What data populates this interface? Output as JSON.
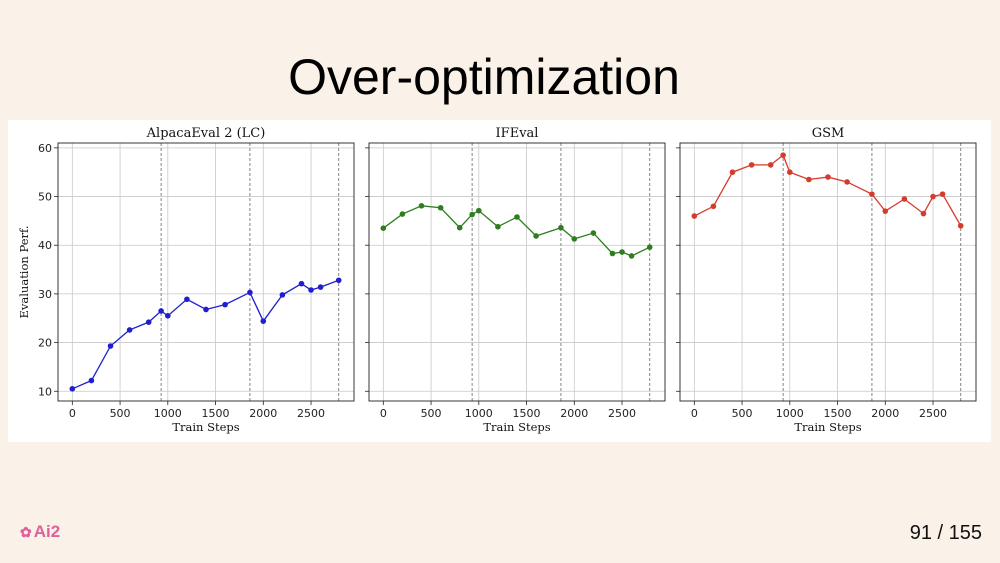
{
  "slide": {
    "title": "Over-optimization",
    "logo_text": "Ai2",
    "page_number": "91 / 155"
  },
  "chart_data": [
    {
      "type": "line",
      "title": "AlpacaEval 2 (LC)",
      "xlabel": "Train Steps",
      "ylabel": "Evaluation Perf.",
      "color": "#1f1fcf",
      "x": [
        0,
        200,
        400,
        600,
        800,
        930,
        1000,
        1200,
        1400,
        1600,
        1860,
        2000,
        2200,
        2400,
        2500,
        2600,
        2790
      ],
      "values": [
        10.5,
        12.2,
        19.3,
        22.6,
        24.2,
        26.5,
        25.5,
        28.9,
        26.8,
        27.8,
        30.3,
        24.4,
        29.8,
        32.1,
        30.8,
        31.4,
        32.8
      ],
      "xlim": [
        -150,
        2950
      ],
      "ylim": [
        8,
        61
      ],
      "xticks": [
        0,
        500,
        1000,
        1500,
        2000,
        2500
      ],
      "yticks": [
        10,
        20,
        30,
        40,
        50,
        60
      ],
      "vlines": [
        930,
        1860,
        2790
      ],
      "grid": true
    },
    {
      "type": "line",
      "title": "IFEval",
      "xlabel": "Train Steps",
      "ylabel": "",
      "color": "#2e7d1f",
      "x": [
        0,
        200,
        400,
        600,
        800,
        930,
        1000,
        1200,
        1400,
        1600,
        1860,
        2000,
        2200,
        2400,
        2500,
        2600,
        2790
      ],
      "values": [
        43.5,
        46.4,
        48.1,
        47.7,
        43.6,
        46.3,
        47.1,
        43.8,
        45.8,
        41.9,
        43.6,
        41.3,
        42.5,
        38.3,
        38.6,
        37.8,
        39.6
      ],
      "xlim": [
        -150,
        2950
      ],
      "ylim": [
        8,
        61
      ],
      "xticks": [
        0,
        500,
        1000,
        1500,
        2000,
        2500
      ],
      "yticks": [
        10,
        20,
        30,
        40,
        50,
        60
      ],
      "vlines": [
        930,
        1860,
        2790
      ],
      "grid": true
    },
    {
      "type": "line",
      "title": "GSM",
      "xlabel": "Train Steps",
      "ylabel": "",
      "color": "#d63a2a",
      "x": [
        0,
        200,
        400,
        600,
        800,
        930,
        1000,
        1200,
        1400,
        1600,
        1860,
        2000,
        2200,
        2400,
        2500,
        2600,
        2790
      ],
      "values": [
        46.0,
        48.0,
        55.0,
        56.5,
        56.5,
        58.5,
        55.0,
        53.5,
        54.0,
        53.0,
        50.5,
        47.0,
        49.5,
        46.5,
        50.0,
        50.5,
        44.0
      ],
      "xlim": [
        -150,
        2950
      ],
      "ylim": [
        8,
        61
      ],
      "xticks": [
        0,
        500,
        1000,
        1500,
        2000,
        2500
      ],
      "yticks": [
        10,
        20,
        30,
        40,
        50,
        60
      ],
      "vlines": [
        930,
        1860,
        2790
      ],
      "grid": true
    }
  ]
}
